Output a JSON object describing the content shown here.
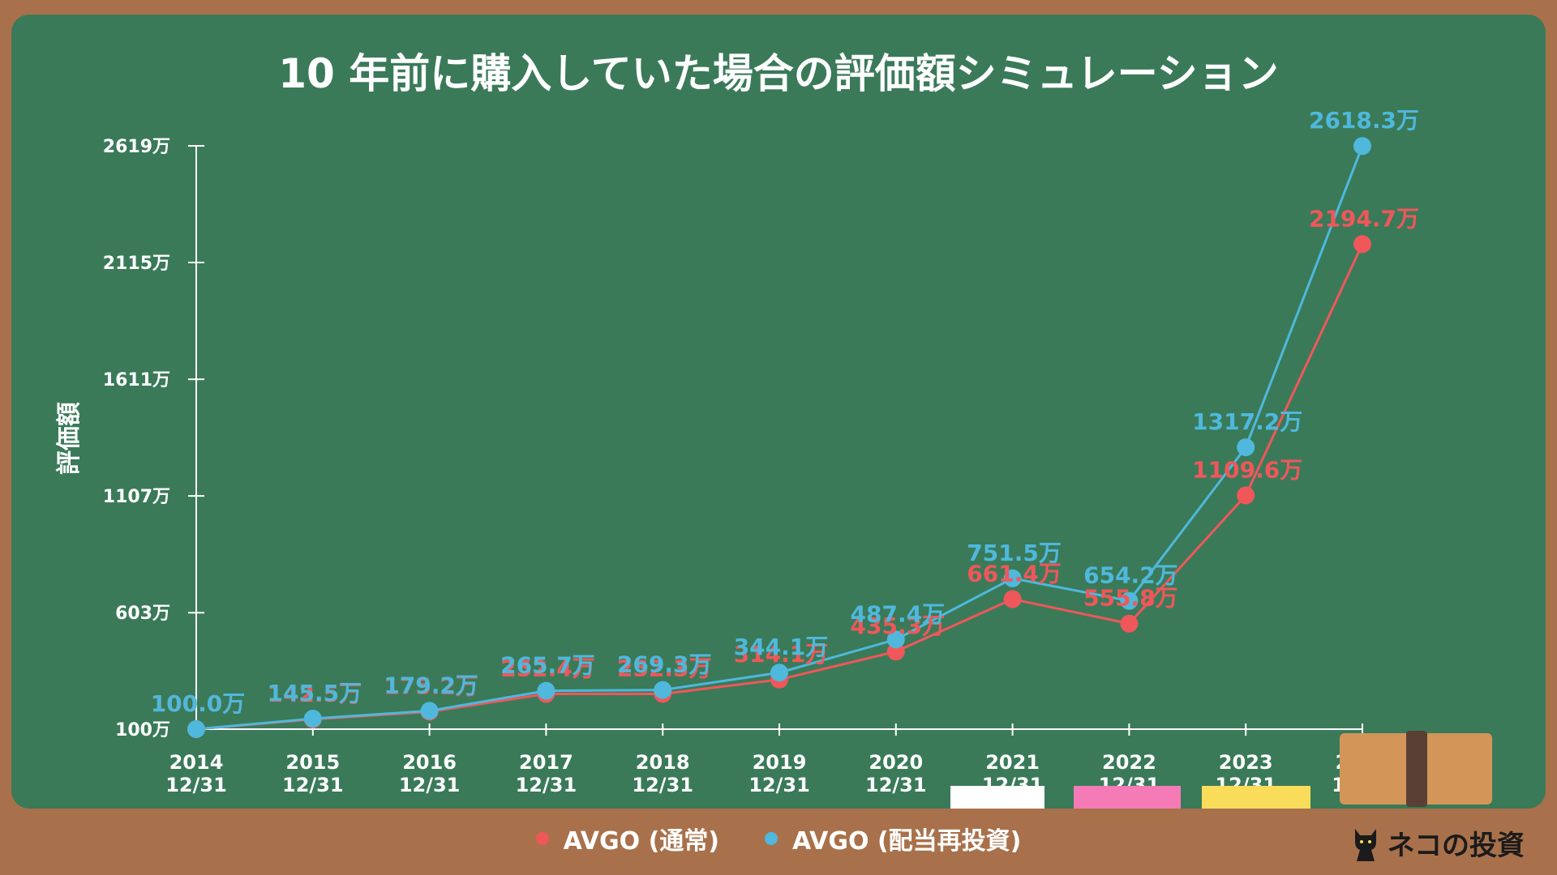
{
  "title": "10 年前に購入していた場合の評価額シミュレーション",
  "brand": {
    "name": "ネコの投資",
    "icon": "black-cat-icon"
  },
  "colors": {
    "background": "#a8714b",
    "board": "#3a7a59",
    "normal": "#f0575a",
    "reinvest": "#4fb8dc"
  },
  "chart_data": {
    "type": "line",
    "title": "10 年前に購入していた場合の評価額シミュレーション",
    "xlabel": "",
    "ylabel": "評価額",
    "categories": [
      [
        "2014",
        "12/31"
      ],
      [
        "2015",
        "12/31"
      ],
      [
        "2016",
        "12/31"
      ],
      [
        "2017",
        "12/31"
      ],
      [
        "2018",
        "12/31"
      ],
      [
        "2019",
        "12/31"
      ],
      [
        "2020",
        "12/31"
      ],
      [
        "2021",
        "12/31"
      ],
      [
        "2022",
        "12/31"
      ],
      [
        "2023",
        "12/31"
      ],
      [
        "2024",
        "12/20"
      ]
    ],
    "y_ticks": [
      "100万",
      "603万",
      "1107万",
      "1611万",
      "2115万",
      "2619万"
    ],
    "y_tick_values": [
      100,
      603,
      1107,
      1611,
      2115,
      2619
    ],
    "ylim": [
      100,
      2619
    ],
    "grid": false,
    "legend_position": "bottom",
    "series": [
      {
        "name": "AVGO (通常)",
        "color": "#f0575a",
        "values": [
          100.0,
          142.5,
          175.2,
          252.4,
          252.3,
          314.1,
          435.3,
          661.4,
          555.8,
          1109.6,
          2194.7
        ],
        "labels": [
          "100.0万",
          "142.5万",
          "175.2万",
          "252.4万",
          "252.3万",
          "314.1万",
          "435.3万",
          "661.4万",
          "555.8万",
          "1109.6万",
          "2194.7万"
        ]
      },
      {
        "name": "AVGO (配当再投資)",
        "color": "#4fb8dc",
        "values": [
          100.0,
          145.5,
          179.2,
          265.7,
          269.3,
          344.1,
          487.4,
          751.5,
          654.2,
          1317.2,
          2618.3
        ],
        "labels": [
          "100.0万",
          "145.5万",
          "179.2万",
          "265.7万",
          "269.3万",
          "344.1万",
          "487.4万",
          "751.5万",
          "654.2万",
          "1317.2万",
          "2618.3万"
        ]
      }
    ]
  },
  "legend": [
    {
      "label": "AVGO (通常)",
      "color": "#f0575a"
    },
    {
      "label": "AVGO (配当再投資)",
      "color": "#4fb8dc"
    }
  ]
}
